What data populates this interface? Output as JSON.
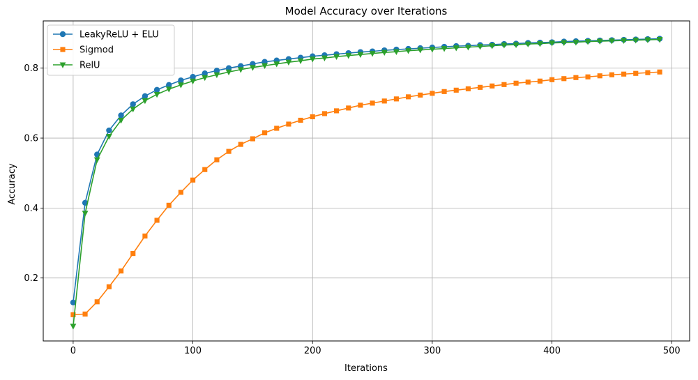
{
  "chart_data": {
    "type": "line",
    "title": "Model Accuracy over Iterations",
    "xlabel": "Iterations",
    "ylabel": "Accuracy",
    "xlim": [
      -25,
      515
    ],
    "ylim": [
      0.02,
      0.935
    ],
    "xticks": [
      0,
      100,
      200,
      300,
      400,
      500
    ],
    "yticks": [
      0.2,
      0.4,
      0.6,
      0.8
    ],
    "grid": true,
    "legend_position": "top-left",
    "x": [
      0,
      10,
      20,
      30,
      40,
      50,
      60,
      70,
      80,
      90,
      100,
      110,
      120,
      130,
      140,
      150,
      160,
      170,
      180,
      190,
      200,
      210,
      220,
      230,
      240,
      250,
      260,
      270,
      280,
      290,
      300,
      310,
      320,
      330,
      340,
      350,
      360,
      370,
      380,
      390,
      400,
      410,
      420,
      430,
      440,
      450,
      460,
      470,
      480,
      490
    ],
    "series": [
      {
        "name": "LeakyReLU + ELU",
        "color": "#1f77b4",
        "marker": "circle",
        "values": [
          0.13,
          0.415,
          0.553,
          0.622,
          0.665,
          0.697,
          0.72,
          0.738,
          0.752,
          0.765,
          0.775,
          0.785,
          0.793,
          0.8,
          0.806,
          0.812,
          0.818,
          0.822,
          0.826,
          0.83,
          0.834,
          0.837,
          0.84,
          0.843,
          0.846,
          0.848,
          0.851,
          0.853,
          0.855,
          0.857,
          0.859,
          0.861,
          0.863,
          0.864,
          0.866,
          0.867,
          0.869,
          0.87,
          0.872,
          0.873,
          0.874,
          0.876,
          0.877,
          0.878,
          0.879,
          0.88,
          0.881,
          0.882,
          0.883,
          0.884
        ]
      },
      {
        "name": "Sigmod",
        "color": "#ff7f0e",
        "marker": "square",
        "values": [
          0.095,
          0.097,
          0.132,
          0.175,
          0.22,
          0.27,
          0.32,
          0.365,
          0.408,
          0.445,
          0.48,
          0.51,
          0.538,
          0.562,
          0.582,
          0.598,
          0.615,
          0.628,
          0.64,
          0.651,
          0.661,
          0.67,
          0.678,
          0.686,
          0.694,
          0.7,
          0.706,
          0.712,
          0.718,
          0.723,
          0.728,
          0.733,
          0.737,
          0.741,
          0.745,
          0.749,
          0.753,
          0.757,
          0.76,
          0.763,
          0.767,
          0.77,
          0.773,
          0.775,
          0.778,
          0.781,
          0.783,
          0.785,
          0.787,
          0.789
        ]
      },
      {
        "name": "RelU",
        "color": "#2ca02c",
        "marker": "triangle-down",
        "values": [
          0.062,
          0.385,
          0.538,
          0.605,
          0.651,
          0.683,
          0.707,
          0.725,
          0.74,
          0.752,
          0.763,
          0.773,
          0.781,
          0.789,
          0.796,
          0.802,
          0.807,
          0.812,
          0.817,
          0.821,
          0.826,
          0.829,
          0.833,
          0.836,
          0.839,
          0.842,
          0.845,
          0.847,
          0.85,
          0.852,
          0.854,
          0.856,
          0.858,
          0.86,
          0.862,
          0.864,
          0.866,
          0.867,
          0.869,
          0.87,
          0.872,
          0.873,
          0.874,
          0.876,
          0.877,
          0.878,
          0.879,
          0.88,
          0.881,
          0.882
        ]
      }
    ]
  }
}
